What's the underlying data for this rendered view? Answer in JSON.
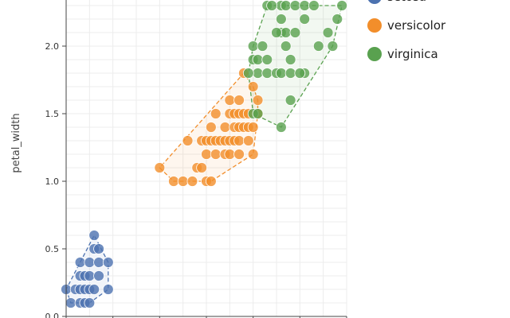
{
  "chart_data": {
    "type": "scatter",
    "ylabel": "petal_width",
    "xlim": [
      1.0,
      7.0
    ],
    "ylim": [
      0.0,
      2.5
    ],
    "yticks": [
      {
        "value": 0.0,
        "label": "0.0"
      },
      {
        "value": 0.5,
        "label": "0.5"
      },
      {
        "value": 1.0,
        "label": "1.0"
      },
      {
        "value": 1.5,
        "label": "1.5"
      },
      {
        "value": 2.0,
        "label": "2.0"
      }
    ],
    "grid": true,
    "legend_position": "top-right",
    "hull_style": "dashed outline with light fill",
    "series": [
      {
        "name": "setosa",
        "color": "#4c72b0",
        "points": [
          [
            1.1,
            0.1
          ],
          [
            1.3,
            0.1
          ],
          [
            1.4,
            0.1
          ],
          [
            1.5,
            0.1
          ],
          [
            1.0,
            0.2
          ],
          [
            1.2,
            0.2
          ],
          [
            1.3,
            0.2
          ],
          [
            1.4,
            0.2
          ],
          [
            1.5,
            0.2
          ],
          [
            1.6,
            0.2
          ],
          [
            1.9,
            0.2
          ],
          [
            1.3,
            0.3
          ],
          [
            1.4,
            0.3
          ],
          [
            1.5,
            0.3
          ],
          [
            1.7,
            0.3
          ],
          [
            1.3,
            0.4
          ],
          [
            1.5,
            0.4
          ],
          [
            1.7,
            0.4
          ],
          [
            1.9,
            0.4
          ],
          [
            1.6,
            0.5
          ],
          [
            1.6,
            0.6
          ],
          [
            1.7,
            0.5
          ]
        ]
      },
      {
        "name": "versicolor",
        "color": "#f28e2b",
        "points": [
          [
            3.0,
            1.1
          ],
          [
            3.3,
            1.0
          ],
          [
            3.5,
            1.0
          ],
          [
            3.7,
            1.0
          ],
          [
            4.0,
            1.0
          ],
          [
            4.1,
            1.0
          ],
          [
            3.8,
            1.1
          ],
          [
            3.9,
            1.1
          ],
          [
            4.0,
            1.2
          ],
          [
            4.2,
            1.2
          ],
          [
            4.4,
            1.2
          ],
          [
            4.5,
            1.2
          ],
          [
            4.7,
            1.2
          ],
          [
            5.0,
            1.2
          ],
          [
            3.6,
            1.3
          ],
          [
            3.9,
            1.3
          ],
          [
            4.0,
            1.3
          ],
          [
            4.1,
            1.3
          ],
          [
            4.2,
            1.3
          ],
          [
            4.3,
            1.3
          ],
          [
            4.4,
            1.3
          ],
          [
            4.5,
            1.3
          ],
          [
            4.6,
            1.3
          ],
          [
            4.7,
            1.3
          ],
          [
            4.9,
            1.3
          ],
          [
            4.1,
            1.4
          ],
          [
            4.4,
            1.4
          ],
          [
            4.6,
            1.4
          ],
          [
            4.7,
            1.4
          ],
          [
            4.8,
            1.4
          ],
          [
            4.9,
            1.4
          ],
          [
            5.0,
            1.4
          ],
          [
            4.2,
            1.5
          ],
          [
            4.5,
            1.5
          ],
          [
            4.6,
            1.5
          ],
          [
            4.7,
            1.5
          ],
          [
            4.8,
            1.5
          ],
          [
            4.9,
            1.5
          ],
          [
            5.1,
            1.5
          ],
          [
            4.5,
            1.6
          ],
          [
            4.7,
            1.6
          ],
          [
            5.1,
            1.6
          ],
          [
            4.8,
            1.8
          ],
          [
            5.0,
            1.7
          ]
        ]
      },
      {
        "name": "virginica",
        "color": "#59a14f",
        "points": [
          [
            5.0,
            1.5
          ],
          [
            5.1,
            1.5
          ],
          [
            5.6,
            1.4
          ],
          [
            5.8,
            1.6
          ],
          [
            5.1,
            1.8
          ],
          [
            5.3,
            1.8
          ],
          [
            5.5,
            1.8
          ],
          [
            5.6,
            1.8
          ],
          [
            5.8,
            1.8
          ],
          [
            6.1,
            1.8
          ],
          [
            4.9,
            1.8
          ],
          [
            5.0,
            1.9
          ],
          [
            5.1,
            1.9
          ],
          [
            5.3,
            1.9
          ],
          [
            5.8,
            1.9
          ],
          [
            6.0,
            1.8
          ],
          [
            5.7,
            2.0
          ],
          [
            5.0,
            2.0
          ],
          [
            5.2,
            2.0
          ],
          [
            6.4,
            2.0
          ],
          [
            6.7,
            2.0
          ],
          [
            5.6,
            2.1
          ],
          [
            5.7,
            2.1
          ],
          [
            5.9,
            2.1
          ],
          [
            6.6,
            2.1
          ],
          [
            5.6,
            2.2
          ],
          [
            6.1,
            2.2
          ],
          [
            6.8,
            2.2
          ],
          [
            5.6,
            2.3
          ],
          [
            5.7,
            2.3
          ],
          [
            5.9,
            2.3
          ],
          [
            6.1,
            2.3
          ],
          [
            6.3,
            2.3
          ],
          [
            5.3,
            2.3
          ],
          [
            5.4,
            2.3
          ],
          [
            6.9,
            2.3
          ],
          [
            5.5,
            2.1
          ]
        ]
      }
    ]
  }
}
